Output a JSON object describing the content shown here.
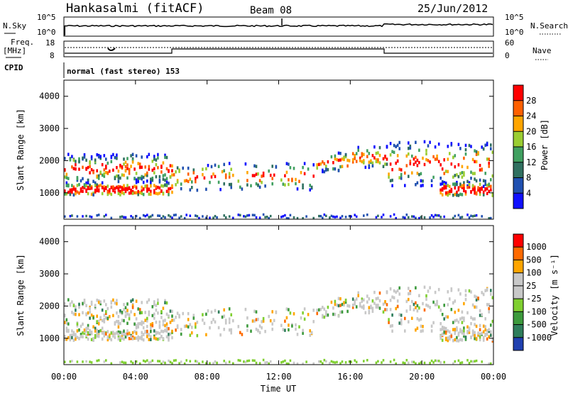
{
  "header": {
    "station": "Hankasalmi (fitACF)",
    "beam": "Beam 08",
    "date": "25/Jun/2012"
  },
  "noise_panel": {
    "left_label": "N.Sky",
    "right_label": "N.Search",
    "left_ticks": [
      "10^5",
      "10^0"
    ],
    "right_ticks": [
      "10^5",
      "10^0"
    ]
  },
  "freq_panel": {
    "left_label_1": "Freq.",
    "left_label_2": "[MHz]",
    "right_label": "Nave",
    "left_ticks": [
      "18",
      "8"
    ],
    "right_ticks": [
      "60",
      "0"
    ],
    "cpid_label": "CPID",
    "mode_text": "normal (fast stereo) 153"
  },
  "x_axis": {
    "ticks": [
      "00:00",
      "04:00",
      "08:00",
      "12:00",
      "16:00",
      "20:00",
      "00:00"
    ],
    "label": "Time UT"
  },
  "chart_data": [
    {
      "type": "heatmap",
      "name": "power",
      "ylabel": "Slant Range [km]",
      "y_ticks": [
        "1000",
        "2000",
        "3000",
        "4000"
      ],
      "ylim": [
        180,
        4500
      ],
      "xlim_hours": [
        0,
        24
      ],
      "colorbar": {
        "label": "Power [dB]",
        "ticks": [
          "4",
          "8",
          "12",
          "16",
          "20",
          "24",
          "28"
        ],
        "colors": [
          "#1010ff",
          "#2050b0",
          "#307060",
          "#40a060",
          "#9acd32",
          "#ffa500",
          "#ff6000",
          "#ff0000"
        ]
      }
    },
    {
      "type": "heatmap",
      "name": "velocity",
      "ylabel": "Slant Range [km]",
      "y_ticks": [
        "1000",
        "2000",
        "3000",
        "4000"
      ],
      "ylim": [
        180,
        4500
      ],
      "xlim_hours": [
        0,
        24
      ],
      "colorbar": {
        "label": "Velocity [m s⁻¹]",
        "ticks": [
          "1000",
          "500",
          "100",
          "25",
          "-25",
          "-100",
          "-500",
          "-1000"
        ],
        "colors": [
          "#2040b0",
          "#2e7d5b",
          "#3c9a3c",
          "#7fcf30",
          "#c8c8c8",
          "#c8c8c8",
          "#ffa500",
          "#ff6a00",
          "#ff0000"
        ]
      }
    }
  ]
}
